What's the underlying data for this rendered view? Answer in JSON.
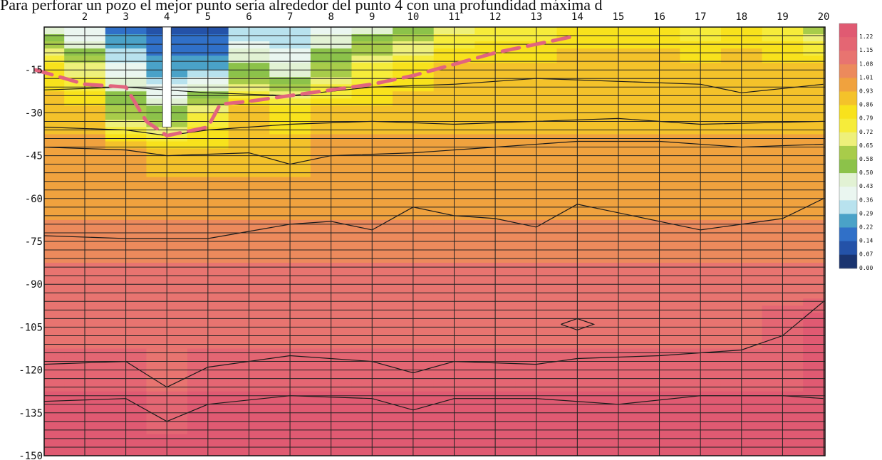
{
  "caption": "Para perforar un pozo el mejor punto sería alrededor del punto 4 con una profundidad máxima d",
  "chart_data": {
    "type": "heatmap",
    "x_ticks": [
      "2",
      "3",
      "4",
      "5",
      "6",
      "7",
      "8",
      "9",
      "10",
      "11",
      "12",
      "13",
      "14",
      "15",
      "16",
      "17",
      "18",
      "19",
      "20"
    ],
    "y_ticks": [
      "-15",
      "-30",
      "-45",
      "-60",
      "-75",
      "-90",
      "-105",
      "-120",
      "-135",
      "-150"
    ],
    "xlim": [
      1,
      20
    ],
    "ylim": [
      -150,
      0
    ],
    "grid": true,
    "colorbar": {
      "labels": [
        "1.22",
        "1.15",
        "1.08",
        "1.01",
        "0.93",
        "0.86",
        "0.79",
        "0.72",
        "0.65",
        "0.58",
        "0.50",
        "0.43",
        "0.36",
        "0.29",
        "0.22",
        "0.14",
        "0.07",
        "0.00"
      ],
      "colors": [
        "#e05a72",
        "#e46673",
        "#e87470",
        "#ec8a5c",
        "#f0a23e",
        "#f4c22a",
        "#f8e21c",
        "#f6ec3a",
        "#eef07a",
        "#a8cc4a",
        "#8cc24a",
        "#e2f2d4",
        "#eaf6f0",
        "#b8e2ee",
        "#4aa2c8",
        "#3070c8",
        "#2452a8",
        "#1a3470"
      ],
      "position": "right"
    },
    "data_grid": {
      "x": [
        1,
        2,
        3,
        4,
        5,
        6,
        7,
        8,
        9,
        10,
        11,
        12,
        13,
        14,
        15,
        16,
        17,
        18,
        19,
        20
      ],
      "y": [
        0,
        -15,
        -30,
        -45,
        -60,
        -75,
        -90,
        -105,
        -120,
        -135,
        -150
      ],
      "z": [
        [
          0.4,
          0.3,
          0.14,
          0.07,
          0.07,
          0.25,
          0.25,
          0.36,
          0.43,
          0.5,
          0.65,
          0.72,
          0.72,
          0.79,
          0.79,
          0.79,
          0.72,
          0.79,
          0.72,
          0.58
        ],
        [
          0.79,
          0.65,
          0.36,
          0.22,
          0.22,
          0.5,
          0.43,
          0.58,
          0.72,
          0.79,
          0.86,
          0.86,
          0.86,
          0.86,
          0.86,
          0.86,
          0.86,
          0.86,
          0.86,
          0.86
        ],
        [
          0.86,
          0.86,
          0.58,
          0.5,
          0.72,
          0.86,
          0.79,
          0.86,
          0.86,
          0.86,
          0.86,
          0.86,
          0.86,
          0.86,
          0.86,
          0.86,
          0.86,
          0.86,
          0.86,
          0.86
        ],
        [
          0.93,
          0.93,
          0.93,
          0.86,
          0.86,
          0.86,
          0.86,
          0.93,
          0.93,
          0.93,
          0.93,
          0.93,
          0.93,
          0.93,
          0.93,
          0.93,
          0.93,
          0.93,
          0.93,
          0.93
        ],
        [
          0.93,
          0.93,
          0.93,
          0.93,
          0.93,
          0.93,
          0.93,
          0.93,
          0.93,
          0.93,
          0.93,
          0.93,
          0.93,
          0.93,
          0.93,
          0.93,
          0.93,
          0.93,
          0.93,
          0.93
        ],
        [
          1.01,
          1.01,
          1.01,
          1.01,
          1.01,
          1.01,
          1.01,
          1.01,
          1.01,
          1.01,
          1.01,
          1.01,
          1.01,
          1.01,
          1.01,
          1.01,
          1.01,
          1.01,
          1.01,
          1.01
        ],
        [
          1.08,
          1.08,
          1.08,
          1.08,
          1.08,
          1.08,
          1.08,
          1.08,
          1.08,
          1.08,
          1.08,
          1.08,
          1.08,
          1.08,
          1.08,
          1.08,
          1.08,
          1.08,
          1.08,
          1.08
        ],
        [
          1.08,
          1.08,
          1.08,
          1.08,
          1.08,
          1.08,
          1.08,
          1.08,
          1.08,
          1.08,
          1.08,
          1.08,
          1.08,
          1.08,
          1.08,
          1.08,
          1.08,
          1.08,
          1.15,
          1.22
        ],
        [
          1.15,
          1.15,
          1.15,
          1.08,
          1.15,
          1.15,
          1.15,
          1.15,
          1.15,
          1.15,
          1.15,
          1.15,
          1.15,
          1.15,
          1.15,
          1.15,
          1.15,
          1.15,
          1.15,
          1.22
        ],
        [
          1.22,
          1.22,
          1.22,
          1.15,
          1.22,
          1.22,
          1.22,
          1.22,
          1.22,
          1.22,
          1.22,
          1.22,
          1.22,
          1.22,
          1.22,
          1.22,
          1.22,
          1.22,
          1.22,
          1.22
        ],
        [
          1.22,
          1.22,
          1.22,
          1.22,
          1.22,
          1.22,
          1.22,
          1.22,
          1.22,
          1.22,
          1.22,
          1.22,
          1.22,
          1.22,
          1.22,
          1.22,
          1.22,
          1.22,
          1.22,
          1.22
        ]
      ]
    },
    "contour_lines": [
      [
        [
          1,
          -73
        ],
        [
          3,
          -74
        ],
        [
          4,
          -74
        ],
        [
          5,
          -74
        ],
        [
          7,
          -69
        ],
        [
          8,
          -68
        ],
        [
          9,
          -71
        ],
        [
          10,
          -63
        ],
        [
          11,
          -66
        ],
        [
          12,
          -67
        ],
        [
          13,
          -70
        ],
        [
          14,
          -62
        ],
        [
          17,
          -71
        ],
        [
          19,
          -67
        ],
        [
          20,
          -60
        ]
      ],
      [
        [
          1,
          -118
        ],
        [
          3,
          -117
        ],
        [
          4,
          -126
        ],
        [
          5,
          -119
        ],
        [
          7,
          -115
        ],
        [
          9,
          -117
        ],
        [
          10,
          -121
        ],
        [
          11,
          -117
        ],
        [
          13,
          -118
        ],
        [
          14,
          -116
        ],
        [
          16,
          -115
        ],
        [
          18,
          -113
        ],
        [
          19,
          -108
        ],
        [
          20,
          -96
        ]
      ],
      [
        [
          1,
          -131
        ],
        [
          3,
          -130
        ],
        [
          4,
          -138
        ],
        [
          5,
          -132
        ],
        [
          7,
          -129
        ],
        [
          9,
          -130
        ],
        [
          10,
          -134
        ],
        [
          11,
          -130
        ],
        [
          13,
          -130
        ],
        [
          15,
          -132
        ],
        [
          17,
          -129
        ],
        [
          19,
          -129
        ],
        [
          20,
          -130
        ]
      ],
      [
        [
          1,
          -42
        ],
        [
          3,
          -43
        ],
        [
          4,
          -45
        ],
        [
          6,
          -44
        ],
        [
          7,
          -48
        ],
        [
          8,
          -45
        ],
        [
          10,
          -44
        ],
        [
          12,
          -42
        ],
        [
          14,
          -40
        ],
        [
          16,
          -40
        ],
        [
          18,
          -42
        ],
        [
          20,
          -41
        ]
      ],
      [
        [
          1,
          -35
        ],
        [
          3,
          -36
        ],
        [
          4,
          -38
        ],
        [
          5,
          -36
        ],
        [
          7,
          -34
        ],
        [
          9,
          -33
        ],
        [
          11,
          -34
        ],
        [
          13,
          -33
        ],
        [
          15,
          -32
        ],
        [
          17,
          -34
        ],
        [
          20,
          -33
        ]
      ],
      [
        [
          1,
          -22
        ],
        [
          3,
          -21
        ],
        [
          5,
          -23
        ],
        [
          7,
          -24
        ],
        [
          9,
          -21
        ],
        [
          11,
          -20
        ],
        [
          13,
          -18
        ],
        [
          15,
          -19
        ],
        [
          17,
          -20
        ],
        [
          18,
          -23
        ],
        [
          20,
          -20
        ]
      ],
      [
        [
          13.6,
          -104
        ],
        [
          14,
          -102
        ],
        [
          14.4,
          -104
        ],
        [
          14,
          -106
        ],
        [
          13.6,
          -104
        ]
      ]
    ],
    "annotation_line": {
      "color": "#e2647e",
      "style": "dashed",
      "points": [
        [
          0.8,
          -15
        ],
        [
          2,
          -20
        ],
        [
          3,
          -21
        ],
        [
          3.5,
          -33
        ],
        [
          4,
          -38
        ],
        [
          5,
          -35
        ],
        [
          5.3,
          -27
        ],
        [
          6,
          -26
        ],
        [
          7,
          -24
        ],
        [
          8,
          -22
        ],
        [
          9,
          -20
        ],
        [
          10,
          -17
        ],
        [
          11,
          -13
        ],
        [
          12,
          -9
        ],
        [
          13,
          -6
        ],
        [
          14,
          -3
        ]
      ]
    },
    "borehole": {
      "x": 4,
      "depth": -35
    }
  }
}
